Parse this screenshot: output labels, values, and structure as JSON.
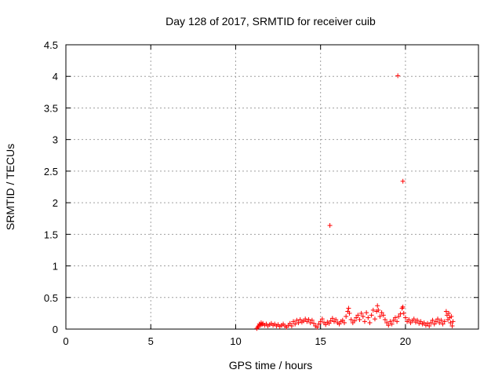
{
  "chart_data": {
    "type": "scatter",
    "title": "Day 128 of 2017, SRMTID for receiver cuib",
    "xlabel": "GPS time / hours",
    "ylabel": "SRMTID / TECUs",
    "xlim": [
      0,
      24.3
    ],
    "ylim": [
      0,
      4.5
    ],
    "x_ticks": [
      0,
      5,
      10,
      15,
      20
    ],
    "y_ticks": [
      0,
      0.5,
      1,
      1.5,
      2,
      2.5,
      3,
      3.5,
      4,
      4.5
    ],
    "x_tick_labels": [
      "0",
      "5",
      "10",
      "15",
      "20"
    ],
    "y_tick_labels": [
      "0",
      "0.5",
      "1",
      "1.5",
      "2",
      "2.5",
      "3",
      "3.5",
      "4",
      "4.5"
    ],
    "grid": true,
    "marker": "+",
    "color": "#ff0000",
    "series": [
      {
        "name": "SRMTID",
        "points": [
          [
            11.25,
            0.01
          ],
          [
            11.3,
            0.03
          ],
          [
            11.35,
            0.05
          ],
          [
            11.4,
            0.08
          ],
          [
            11.45,
            0.06
          ],
          [
            11.5,
            0.1
          ],
          [
            11.55,
            0.07
          ],
          [
            11.6,
            0.09
          ],
          [
            11.7,
            0.06
          ],
          [
            11.8,
            0.08
          ],
          [
            11.9,
            0.05
          ],
          [
            12.0,
            0.07
          ],
          [
            12.1,
            0.09
          ],
          [
            12.2,
            0.06
          ],
          [
            12.3,
            0.08
          ],
          [
            12.4,
            0.05
          ],
          [
            12.5,
            0.07
          ],
          [
            12.6,
            0.04
          ],
          [
            12.7,
            0.06
          ],
          [
            12.8,
            0.08
          ],
          [
            12.9,
            0.05
          ],
          [
            13.0,
            0.03
          ],
          [
            13.1,
            0.06
          ],
          [
            13.2,
            0.09
          ],
          [
            13.3,
            0.05
          ],
          [
            13.4,
            0.12
          ],
          [
            13.5,
            0.08
          ],
          [
            13.6,
            0.14
          ],
          [
            13.7,
            0.1
          ],
          [
            13.8,
            0.15
          ],
          [
            13.9,
            0.11
          ],
          [
            14.0,
            0.13
          ],
          [
            14.1,
            0.16
          ],
          [
            14.2,
            0.12
          ],
          [
            14.3,
            0.15
          ],
          [
            14.4,
            0.1
          ],
          [
            14.5,
            0.14
          ],
          [
            14.6,
            0.09
          ],
          [
            14.7,
            0.05
          ],
          [
            14.8,
            0.03
          ],
          [
            14.9,
            0.08
          ],
          [
            15.0,
            0.12
          ],
          [
            15.1,
            0.16
          ],
          [
            15.2,
            0.1
          ],
          [
            15.3,
            0.07
          ],
          [
            15.4,
            0.11
          ],
          [
            15.5,
            0.09
          ],
          [
            15.6,
            0.13
          ],
          [
            15.7,
            0.17
          ],
          [
            15.8,
            0.12
          ],
          [
            15.9,
            0.15
          ],
          [
            16.0,
            0.1
          ],
          [
            16.1,
            0.08
          ],
          [
            16.2,
            0.12
          ],
          [
            16.3,
            0.14
          ],
          [
            16.4,
            0.1
          ],
          [
            16.5,
            0.2
          ],
          [
            16.6,
            0.28
          ],
          [
            16.65,
            0.33
          ],
          [
            16.7,
            0.25
          ],
          [
            16.8,
            0.15
          ],
          [
            16.9,
            0.1
          ],
          [
            17.0,
            0.13
          ],
          [
            17.1,
            0.18
          ],
          [
            17.2,
            0.22
          ],
          [
            17.3,
            0.15
          ],
          [
            17.4,
            0.25
          ],
          [
            17.5,
            0.2
          ],
          [
            17.6,
            0.12
          ],
          [
            17.7,
            0.26
          ],
          [
            17.8,
            0.18
          ],
          [
            17.9,
            0.1
          ],
          [
            18.0,
            0.22
          ],
          [
            18.1,
            0.3
          ],
          [
            18.2,
            0.16
          ],
          [
            18.3,
            0.28
          ],
          [
            18.35,
            0.37
          ],
          [
            18.4,
            0.3
          ],
          [
            18.5,
            0.2
          ],
          [
            18.6,
            0.26
          ],
          [
            18.7,
            0.22
          ],
          [
            18.8,
            0.15
          ],
          [
            18.9,
            0.1
          ],
          [
            19.0,
            0.06
          ],
          [
            19.1,
            0.12
          ],
          [
            19.2,
            0.08
          ],
          [
            19.3,
            0.14
          ],
          [
            19.4,
            0.18
          ],
          [
            19.5,
            0.12
          ],
          [
            19.6,
            0.2
          ],
          [
            19.7,
            0.24
          ],
          [
            19.8,
            0.33
          ],
          [
            19.85,
            0.35
          ],
          [
            19.9,
            0.25
          ],
          [
            20.0,
            0.18
          ],
          [
            20.1,
            0.12
          ],
          [
            20.2,
            0.15
          ],
          [
            20.3,
            0.1
          ],
          [
            20.4,
            0.13
          ],
          [
            20.5,
            0.16
          ],
          [
            20.6,
            0.11
          ],
          [
            20.7,
            0.14
          ],
          [
            20.8,
            0.09
          ],
          [
            20.9,
            0.12
          ],
          [
            21.0,
            0.08
          ],
          [
            21.1,
            0.1
          ],
          [
            21.2,
            0.06
          ],
          [
            21.3,
            0.09
          ],
          [
            21.4,
            0.05
          ],
          [
            21.5,
            0.1
          ],
          [
            21.6,
            0.14
          ],
          [
            21.7,
            0.08
          ],
          [
            21.8,
            0.12
          ],
          [
            21.9,
            0.16
          ],
          [
            22.0,
            0.1
          ],
          [
            22.1,
            0.14
          ],
          [
            22.2,
            0.08
          ],
          [
            22.3,
            0.12
          ],
          [
            22.4,
            0.28
          ],
          [
            22.45,
            0.22
          ],
          [
            22.5,
            0.15
          ],
          [
            22.55,
            0.25
          ],
          [
            22.6,
            0.18
          ],
          [
            22.65,
            0.1
          ],
          [
            22.7,
            0.2
          ],
          [
            22.75,
            0.05
          ],
          [
            22.8,
            0.12
          ],
          [
            15.55,
            1.64
          ],
          [
            19.55,
            4.01
          ],
          [
            19.85,
            2.34
          ]
        ]
      }
    ]
  }
}
